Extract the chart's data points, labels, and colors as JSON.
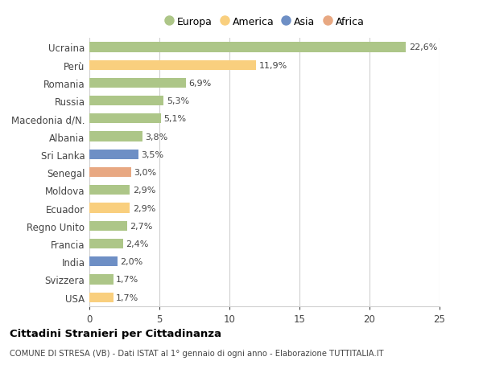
{
  "countries": [
    "Ucraina",
    "Perù",
    "Romania",
    "Russia",
    "Macedonia d/N.",
    "Albania",
    "Sri Lanka",
    "Senegal",
    "Moldova",
    "Ecuador",
    "Regno Unito",
    "Francia",
    "India",
    "Svizzera",
    "USA"
  ],
  "values": [
    22.6,
    11.9,
    6.9,
    5.3,
    5.1,
    3.8,
    3.5,
    3.0,
    2.9,
    2.9,
    2.7,
    2.4,
    2.0,
    1.7,
    1.7
  ],
  "labels": [
    "22,6%",
    "11,9%",
    "6,9%",
    "5,3%",
    "5,1%",
    "3,8%",
    "3,5%",
    "3,0%",
    "2,9%",
    "2,9%",
    "2,7%",
    "2,4%",
    "2,0%",
    "1,7%",
    "1,7%"
  ],
  "colors": [
    "#adc688",
    "#f9cf7e",
    "#adc688",
    "#adc688",
    "#adc688",
    "#adc688",
    "#6e8fc5",
    "#e8a882",
    "#adc688",
    "#f9cf7e",
    "#adc688",
    "#adc688",
    "#6e8fc5",
    "#adc688",
    "#f9cf7e"
  ],
  "legend": [
    {
      "label": "Europa",
      "color": "#adc688"
    },
    {
      "label": "America",
      "color": "#f9cf7e"
    },
    {
      "label": "Asia",
      "color": "#6e8fc5"
    },
    {
      "label": "Africa",
      "color": "#e8a882"
    }
  ],
  "xlim": [
    0,
    25
  ],
  "xticks": [
    0,
    5,
    10,
    15,
    20,
    25
  ],
  "title": "Cittadini Stranieri per Cittadinanza",
  "subtitle": "COMUNE DI STRESA (VB) - Dati ISTAT al 1° gennaio di ogni anno - Elaborazione TUTTITALIA.IT",
  "bg_color": "#ffffff",
  "grid_color": "#d0d0d0",
  "label_fontsize": 8.0,
  "bar_height": 0.55,
  "ytick_fontsize": 8.5,
  "xtick_fontsize": 8.5
}
